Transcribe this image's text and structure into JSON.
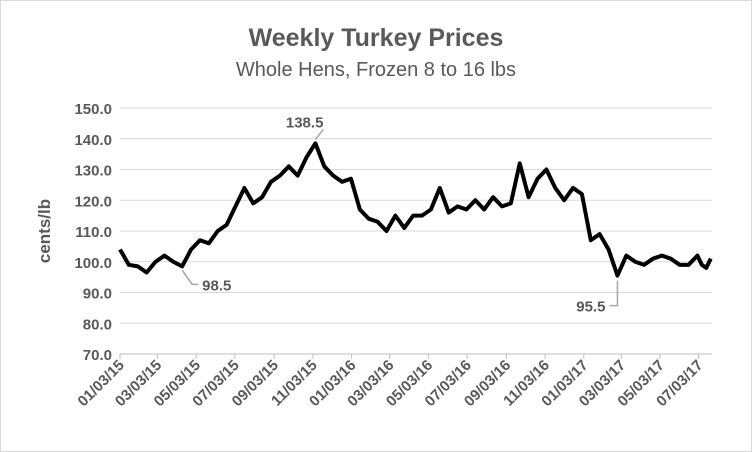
{
  "chart_data": {
    "type": "line",
    "title": "Weekly Turkey Prices",
    "subtitle": "Whole Hens, Frozen 8 to 16 lbs",
    "y_label": "cents/lb",
    "x": [
      "01/03/15",
      "01/17/15",
      "01/31/15",
      "02/14/15",
      "02/28/15",
      "03/14/15",
      "03/28/15",
      "04/11/15",
      "04/25/15",
      "05/09/15",
      "05/23/15",
      "06/06/15",
      "06/20/15",
      "07/04/15",
      "07/18/15",
      "08/01/15",
      "08/15/15",
      "08/29/15",
      "09/12/15",
      "09/26/15",
      "10/10/15",
      "10/24/15",
      "11/07/15",
      "11/21/15",
      "12/05/15",
      "12/19/15",
      "01/02/16",
      "01/16/16",
      "01/30/16",
      "02/13/16",
      "02/27/16",
      "03/12/16",
      "03/26/16",
      "04/09/16",
      "04/23/16",
      "05/07/16",
      "05/21/16",
      "06/04/16",
      "06/18/16",
      "07/02/16",
      "07/16/16",
      "07/30/16",
      "08/13/16",
      "08/27/16",
      "09/10/16",
      "09/24/16",
      "10/08/16",
      "10/22/16",
      "11/05/16",
      "11/19/16",
      "12/03/16",
      "12/17/16",
      "12/31/16",
      "01/14/17",
      "01/28/17",
      "02/11/17",
      "02/25/17",
      "03/11/17",
      "03/25/17",
      "04/08/17",
      "04/22/17",
      "05/06/17",
      "05/20/17",
      "06/03/17",
      "06/17/17",
      "07/01/17",
      "07/08/17",
      "07/15/17",
      "07/22/17"
    ],
    "series": [
      {
        "name": "Weekly Turkey Prices",
        "color": "#000000",
        "values": [
          104,
          99,
          98.5,
          96.5,
          100,
          102,
          100,
          98.5,
          104,
          107,
          106,
          110,
          112,
          118,
          124,
          119,
          121,
          126,
          128,
          131,
          128,
          134,
          138.5,
          131,
          128,
          126,
          127,
          117,
          114,
          113,
          110,
          115,
          111,
          115,
          115,
          117,
          124,
          116,
          118,
          117,
          120,
          117,
          121,
          118,
          119,
          132,
          121,
          127,
          130,
          124,
          120,
          124,
          122,
          107,
          109,
          104,
          95.5,
          102,
          100,
          99,
          101,
          102,
          101,
          99,
          99,
          102,
          99,
          98,
          101
        ]
      }
    ],
    "annotations": [
      {
        "text": "138.5",
        "x": "11/07/15",
        "y": 138.5
      },
      {
        "text": "98.5",
        "x": "04/11/15",
        "y": 98.5
      },
      {
        "text": "95.5",
        "x": "02/25/17",
        "y": 95.5
      }
    ],
    "xlim": [
      "01/03/15",
      "07/24/17"
    ],
    "xticks": [
      "01/03/15",
      "03/03/15",
      "05/03/15",
      "07/03/15",
      "09/03/15",
      "11/03/15",
      "01/03/16",
      "03/03/16",
      "05/03/16",
      "07/03/16",
      "09/03/16",
      "11/03/16",
      "01/03/17",
      "03/03/17",
      "05/03/17",
      "07/03/17"
    ],
    "ylim": [
      70,
      150
    ],
    "yticks": [
      {
        "value": 70,
        "label": "70.0"
      },
      {
        "value": 80,
        "label": "80.0"
      },
      {
        "value": 90,
        "label": "90.0"
      },
      {
        "value": 100,
        "label": "100.0"
      },
      {
        "value": 110,
        "label": "110.0"
      },
      {
        "value": 120,
        "label": "120.0"
      },
      {
        "value": 130,
        "label": "130.0"
      },
      {
        "value": 140,
        "label": "140.0"
      },
      {
        "value": 150,
        "label": "150.0"
      }
    ],
    "grid": true
  }
}
